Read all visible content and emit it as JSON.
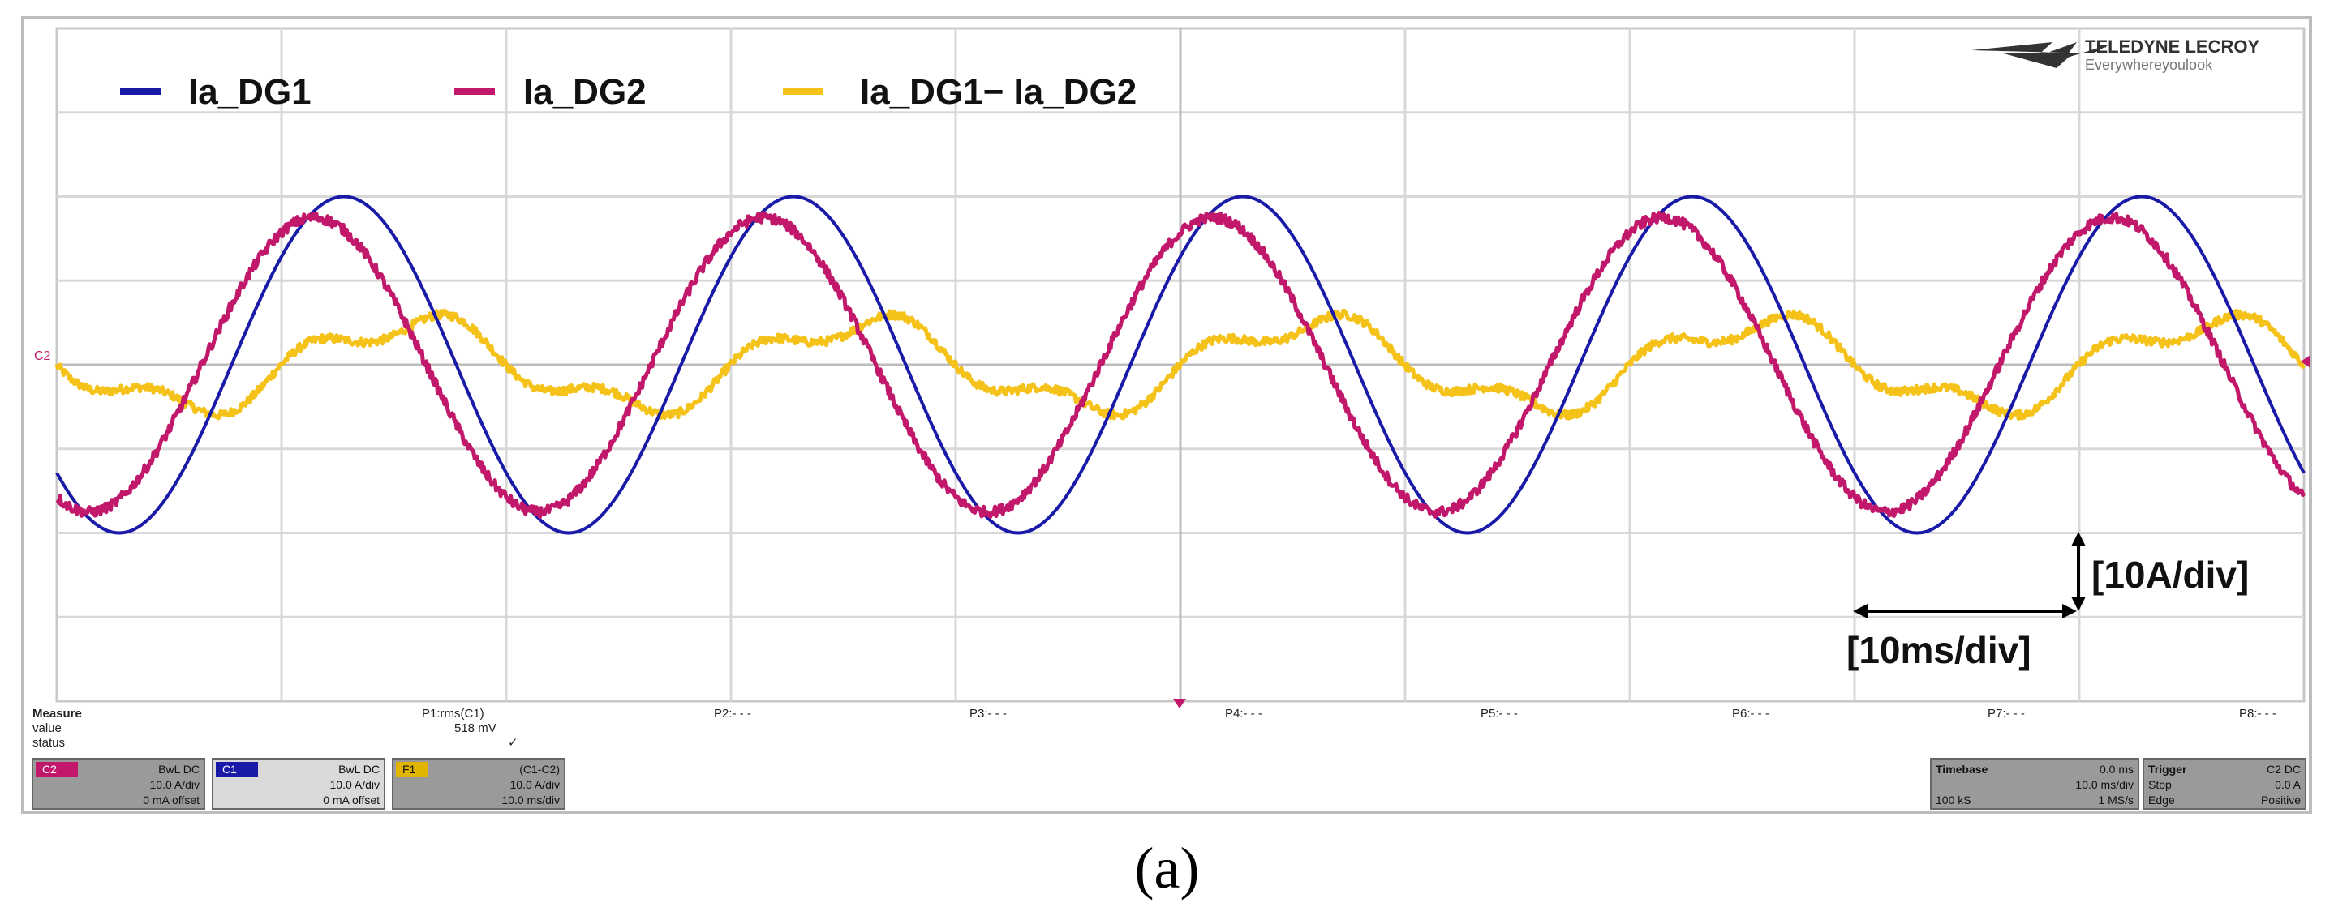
{
  "caption": "(a)",
  "brand": {
    "name": "TELEDYNE LECROY",
    "tagline": "Everywhereyoulook"
  },
  "colors": {
    "ia_dg1": "#1a1aa8",
    "ia_dg2": "#c2186b",
    "diff": "#f5c21a",
    "grid": "#d8d8d8",
    "frame": "#bdbdbd",
    "panel": "#9a9a9a",
    "panel_dark": "#7d7d7d"
  },
  "chart_data": {
    "type": "line",
    "title": "",
    "xlabel": "",
    "ylabel": "",
    "x_unit": "ms",
    "y_unit": "A",
    "xlim": [
      0,
      100
    ],
    "ylim": [
      -40,
      40
    ],
    "grid": true,
    "legend_position": "top-left",
    "series": [
      {
        "name": "Ia_DG1",
        "color": "#1a1aa8",
        "amplitude": 20,
        "frequency_hz": 50,
        "phase_deg": 220,
        "ripple_pct": 0,
        "noise": 0
      },
      {
        "name": "Ia_DG2",
        "color": "#c2186b",
        "amplitude": 17.5,
        "frequency_hz": 50,
        "phase_deg": 244,
        "ripple_pct": 0,
        "noise": 0.6
      },
      {
        "name": "Ia_DG1− Ia_DG2",
        "color": "#f5c21a",
        "amplitude": 5,
        "frequency_hz": 50,
        "phase_deg": 169,
        "ripple_pct": 0.35,
        "noise": 0.5
      }
    ],
    "annotations": [
      {
        "text": "[10A/div]"
      },
      {
        "text": "[10ms/div]"
      }
    ]
  },
  "measure": {
    "labels": [
      "Measure",
      "value",
      "status"
    ],
    "params": [
      {
        "name": "P1:rms(C1)",
        "value": "518 mV",
        "status": "✓"
      },
      {
        "name": "P2:- - -",
        "value": "",
        "status": ""
      },
      {
        "name": "P3:- - -",
        "value": "",
        "status": ""
      },
      {
        "name": "P4:- - -",
        "value": "",
        "status": ""
      },
      {
        "name": "P5:- - -",
        "value": "",
        "status": ""
      },
      {
        "name": "P6:- - -",
        "value": "",
        "status": ""
      },
      {
        "name": "P7:- - -",
        "value": "",
        "status": ""
      },
      {
        "name": "P8:- - -",
        "value": "",
        "status": ""
      }
    ]
  },
  "channels": [
    {
      "id": "C2",
      "tag_color": "#c2186b",
      "line1": "BwL DC",
      "line2": "10.0 A/div",
      "line3": "0 mA offset"
    },
    {
      "id": "C1",
      "tag_color": "#1a1aa8",
      "line1": "BwL DC",
      "line2": "10.0 A/div",
      "line3": "0 mA offset"
    },
    {
      "id": "F1",
      "tag_color": "#e0b400",
      "line1": "(C1-C2)",
      "line2": "10.0 A/div",
      "line3": "10.0 ms/div"
    }
  ],
  "timebase": {
    "title": "Timebase",
    "value": "0.0 ms",
    "line2": "10.0 ms/div",
    "line3a": "100 kS",
    "line3b": "1 MS/s"
  },
  "trigger": {
    "title": "Trigger",
    "mode": "C2 DC",
    "line2a": "Stop",
    "line2b": "0.0 A",
    "line3a": "Edge",
    "line3b": "Positive"
  },
  "markers": {
    "level": "C2"
  }
}
